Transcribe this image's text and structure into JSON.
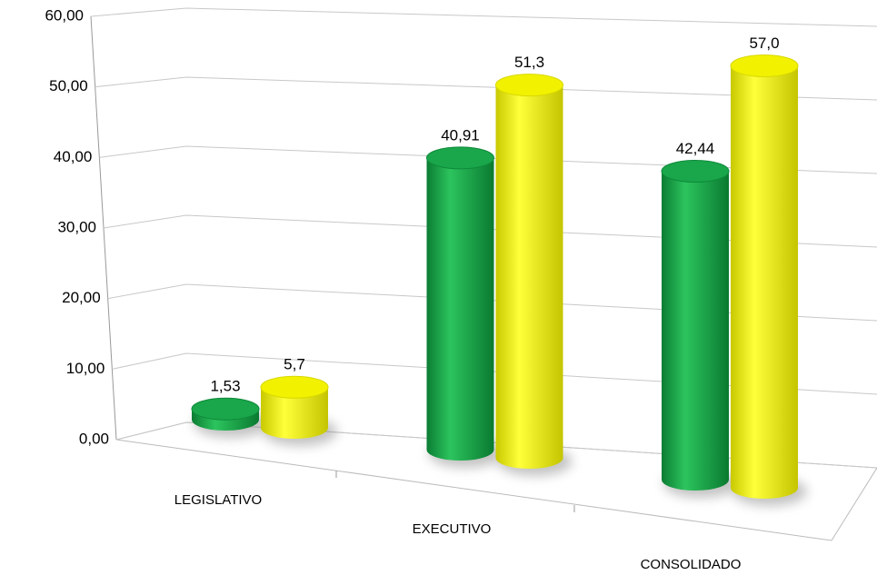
{
  "chart_data": {
    "type": "bar3d",
    "categories": [
      "LEGISLATIVO",
      "EXECUTIVO",
      "CONSOLIDADO"
    ],
    "series": [
      {
        "color": "#1aa64a",
        "values": [
          1.53,
          40.91,
          42.44
        ],
        "value_labels": [
          "1,53",
          "40,91",
          "42,44"
        ]
      },
      {
        "color": "#f2f200",
        "values": [
          5.7,
          51.3,
          57.0
        ],
        "value_labels": [
          "5,7",
          "51,3",
          "57,0"
        ]
      }
    ],
    "ylim": [
      0,
      60
    ],
    "yticks": [
      {
        "value": 0,
        "label": "0,00"
      },
      {
        "value": 10,
        "label": "10,00"
      },
      {
        "value": 20,
        "label": "20,00"
      },
      {
        "value": 30,
        "label": "30,00"
      },
      {
        "value": 40,
        "label": "40,00"
      },
      {
        "value": 50,
        "label": "50,00"
      },
      {
        "value": 60,
        "label": "60,00"
      }
    ],
    "grid": true
  }
}
